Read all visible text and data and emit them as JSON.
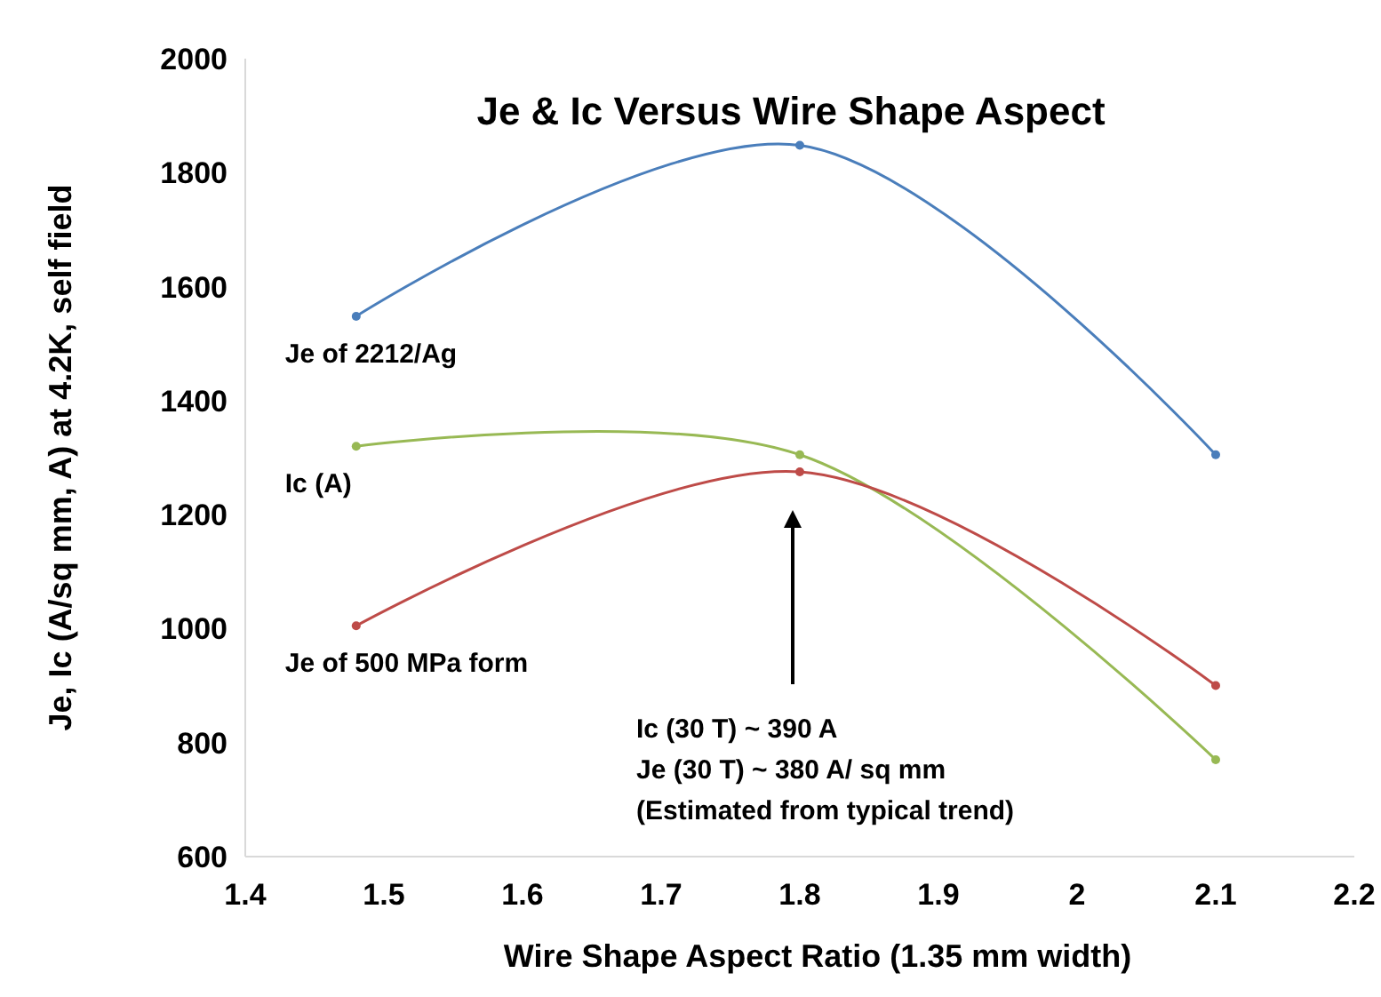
{
  "chart_data": {
    "type": "line",
    "title": "Je & Ic Versus Wire Shape Aspect",
    "xlabel": "Wire Shape Aspect Ratio (1.35 mm width)",
    "ylabel": "Je, Ic (A/sq mm, A) at 4.2K, self field",
    "x": [
      1.48,
      1.8,
      2.1
    ],
    "series": [
      {
        "name": "Je of 2212/Ag",
        "color": "#4a7ebb",
        "values": [
          1548,
          1848,
          1305
        ]
      },
      {
        "name": "Ic (A)",
        "color": "#98b954",
        "values": [
          1320,
          1305,
          770
        ]
      },
      {
        "name": "Je of 500 MPa form",
        "color": "#be4b48",
        "values": [
          1005,
          1275,
          900
        ]
      }
    ],
    "xlim": [
      1.4,
      2.2
    ],
    "xticks": [
      1.4,
      1.5,
      1.6,
      1.7,
      1.8,
      1.9,
      2,
      2.1,
      2.2
    ],
    "ylim": [
      600,
      2000
    ],
    "yticks": [
      600,
      800,
      1000,
      1200,
      1400,
      1600,
      1800,
      2000
    ],
    "annotations": [
      "Ic (30 T) ~ 390 A\nJe (30 T) ~ 380 A/ sq mm\n(Estimated from typical trend)"
    ],
    "marker": "circle",
    "line_style": "solid",
    "grid": false
  }
}
